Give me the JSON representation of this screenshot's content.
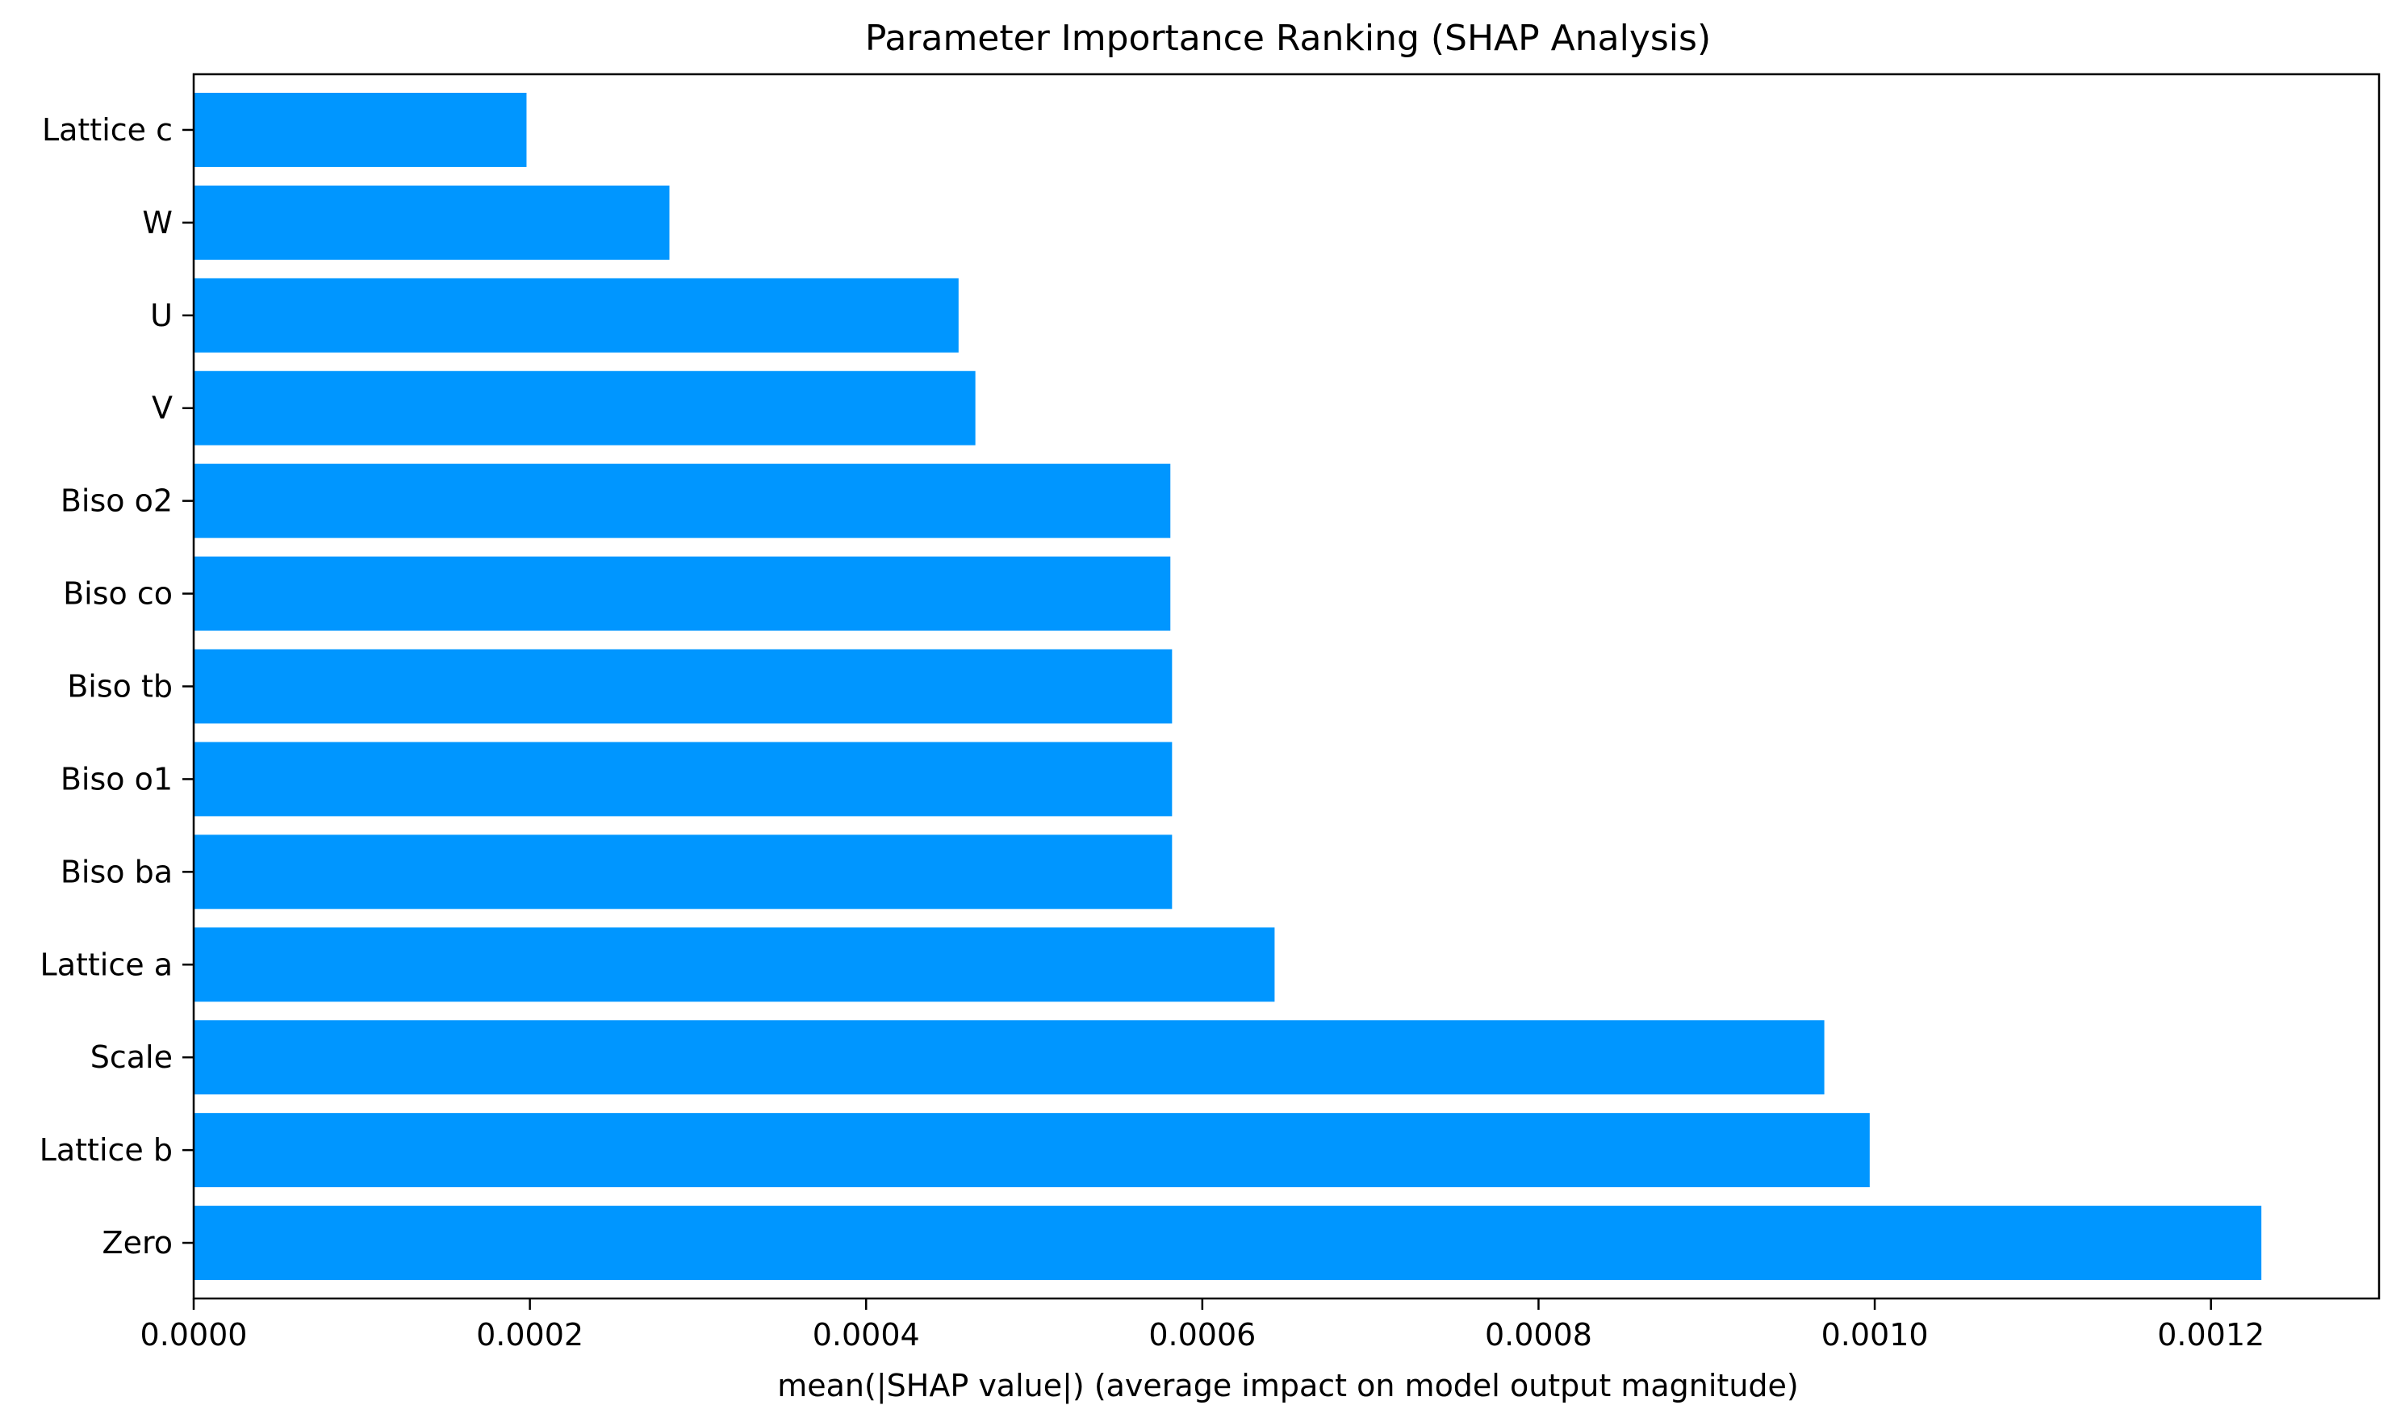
{
  "chart_data": {
    "type": "bar",
    "orientation": "horizontal",
    "title": "Parameter Importance Ranking (SHAP Analysis)",
    "xlabel": "mean(|SHAP value|) (average impact on model output magnitude)",
    "ylabel": "",
    "xlim": [
      0,
      0.0013
    ],
    "xticks": [
      0,
      0.0002,
      0.0004,
      0.0006,
      0.0008,
      0.001,
      0.0012
    ],
    "xtick_labels": [
      "0.0000",
      "0.0002",
      "0.0004",
      "0.0006",
      "0.0008",
      "0.0010",
      "0.0012"
    ],
    "categories": [
      "Zero",
      "Lattice b",
      "Scale",
      "Lattice a",
      "Biso ba",
      "Biso o1",
      "Biso tb",
      "Biso co",
      "Biso o2",
      "V",
      "U",
      "W",
      "Lattice c"
    ],
    "values": [
      0.00123,
      0.000997,
      0.00097,
      0.000643,
      0.000582,
      0.000582,
      0.000582,
      0.000581,
      0.000581,
      0.000465,
      0.000455,
      0.000283,
      0.000198
    ],
    "bar_color": "#0096ff",
    "grid": false,
    "legend": "none"
  }
}
